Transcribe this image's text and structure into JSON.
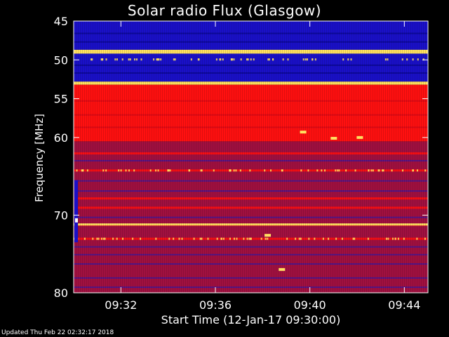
{
  "chart_data": {
    "type": "heatmap",
    "title": "Solar radio Flux (Glasgow)",
    "xlabel": "Start Time (12-Jan-17 09:30:00)",
    "ylabel": "Frequency [MHz]",
    "x_ticks": [
      "09:32",
      "09:36",
      "09:40",
      "09:44"
    ],
    "x_tick_minutes": [
      2,
      6,
      10,
      14
    ],
    "xlim_minutes": [
      0,
      15
    ],
    "y_ticks": [
      45,
      50,
      55,
      60,
      70,
      80
    ],
    "ylim_mhz": [
      45,
      80
    ],
    "colors": {
      "low": "#1a10c8",
      "mid": "#a01040",
      "high": "#ff1010",
      "peak": "#ffe060"
    },
    "bands": [
      {
        "from": 45,
        "to": 48.7,
        "level": "low"
      },
      {
        "from": 48.7,
        "to": 49.2,
        "level": "peak"
      },
      {
        "from": 49.2,
        "to": 52.8,
        "level": "low"
      },
      {
        "from": 52.8,
        "to": 53.2,
        "level": "peak"
      },
      {
        "from": 53.2,
        "to": 60.5,
        "level": "high"
      },
      {
        "from": 60.5,
        "to": 80,
        "level": "mid"
      }
    ],
    "hot_lines_mhz": [
      62.0,
      64.2,
      67.8,
      69.0,
      71.2,
      73.0
    ],
    "bursts": [
      {
        "minute": 9.7,
        "mhz": 59.3
      },
      {
        "minute": 11.0,
        "mhz": 60.1
      },
      {
        "minute": 12.1,
        "mhz": 60.0
      },
      {
        "minute": 8.2,
        "mhz": 72.6
      },
      {
        "minute": 8.8,
        "mhz": 77.0
      }
    ]
  },
  "footer": {
    "updated": "Updated Thu Feb 22 02:32:17 2018"
  }
}
